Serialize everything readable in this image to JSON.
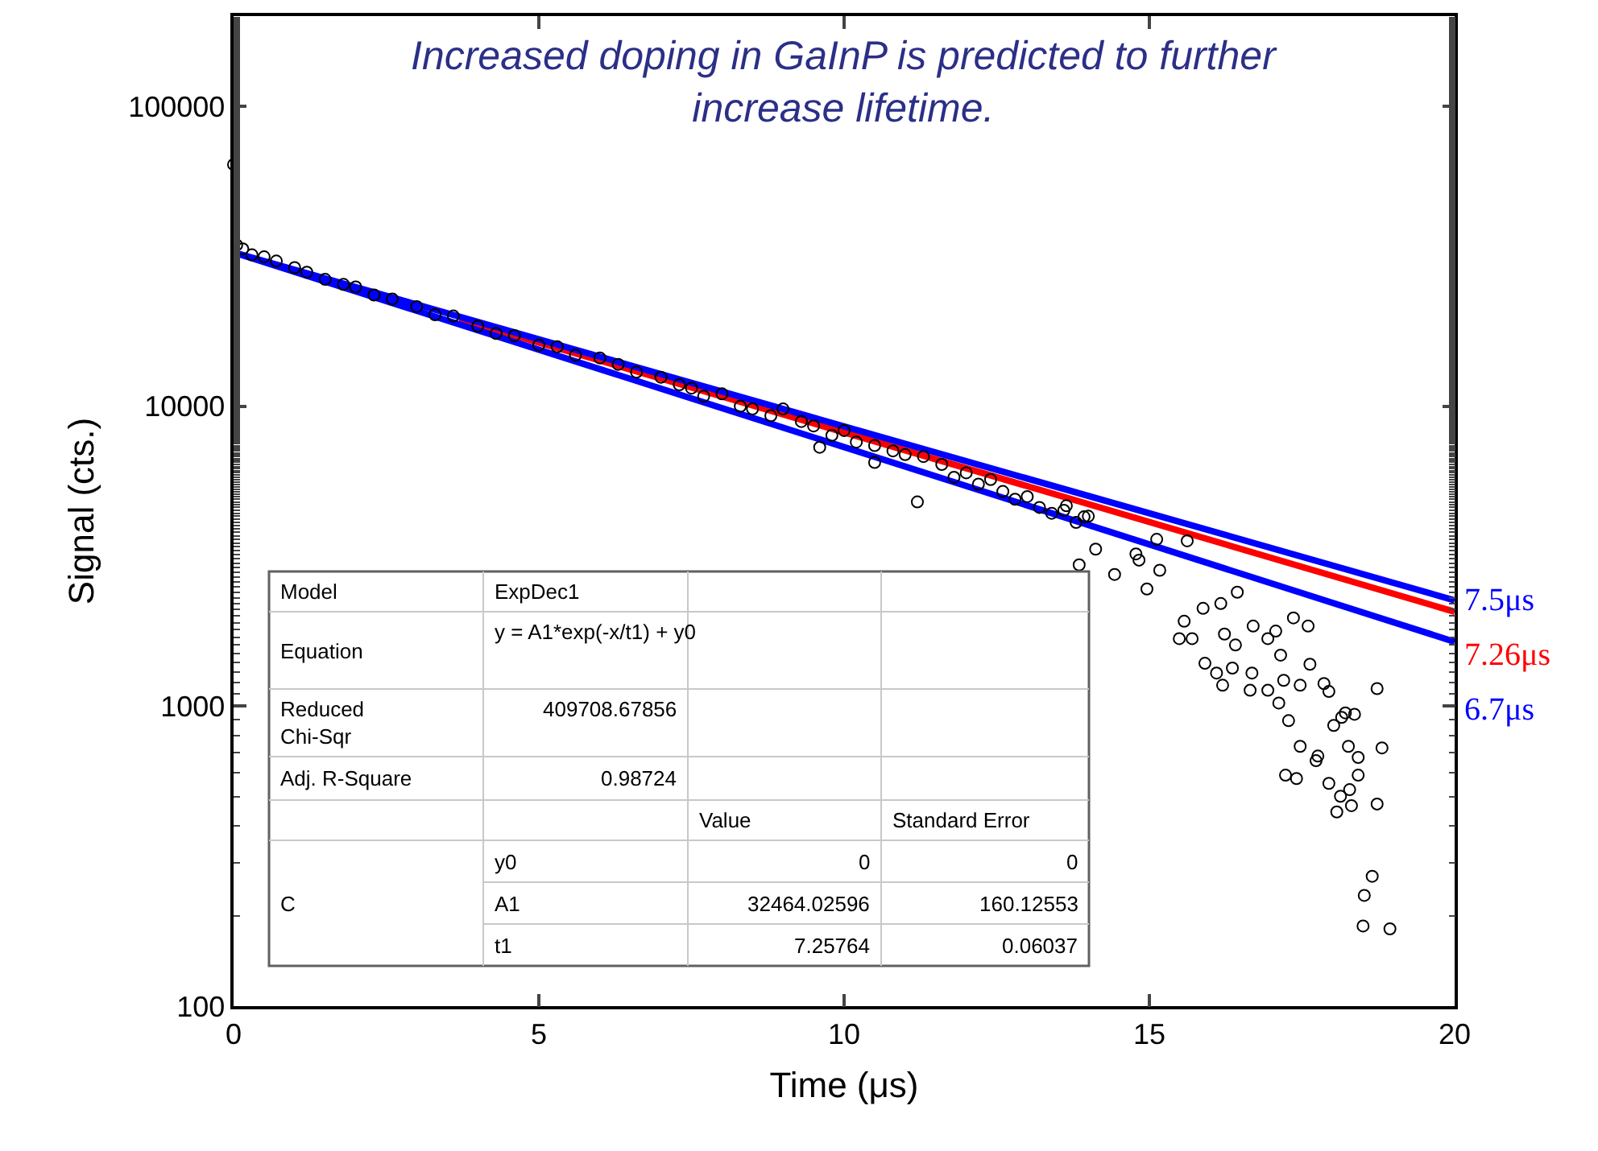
{
  "chart_data": {
    "type": "scatter",
    "title": "Increased doping in GaInP is predicted to further increase lifetime.",
    "xlabel": "Time (μs)",
    "ylabel": "Signal (cts.)",
    "xlim": [
      0,
      20
    ],
    "ylim": [
      100,
      200000
    ],
    "xticks": [
      0,
      5,
      10,
      15,
      20
    ],
    "yticks": [
      100,
      1000,
      10000,
      100000
    ],
    "log": "y",
    "grid": false,
    "legend": false,
    "marker": "circle",
    "series": [
      {
        "color": "#000000",
        "x": [
          0,
          0.05,
          0.15,
          0.3,
          0.5,
          0.7,
          1.0,
          1.2,
          1.5,
          1.8,
          2.0,
          2.3,
          2.6,
          3.0,
          3.3,
          3.6,
          4.0,
          4.3,
          4.6,
          5.0,
          5.3,
          5.6,
          6.0,
          6.3,
          6.6,
          7.0,
          7.3,
          7.5,
          7.7,
          8.0,
          8.3,
          8.5,
          8.8,
          9.0,
          9.3,
          9.5,
          9.6,
          9.8,
          10.0,
          10.2,
          10.5,
          10.5,
          10.8,
          11.0,
          11.2,
          11.3,
          11.6,
          11.8,
          12.0,
          12.2,
          12.4,
          12.6,
          12.8,
          13.0,
          13.2,
          13.4,
          13.6,
          13.64,
          13.8,
          13.85,
          13.93,
          14.0,
          14.12,
          14.43,
          14.78,
          14.83,
          14.96,
          15.12,
          15.17,
          15.49,
          15.57,
          15.62,
          15.7,
          15.88,
          15.91,
          16.1,
          16.17,
          16.2,
          16.23,
          16.36,
          16.41,
          16.44,
          16.65,
          16.68,
          16.7,
          16.94,
          16.94,
          17.07,
          17.12,
          17.15,
          17.2,
          17.23,
          17.28,
          17.36,
          17.41,
          17.47,
          17.47,
          17.6,
          17.63,
          17.73,
          17.76,
          17.86,
          17.94,
          17.94,
          18.02,
          18.07,
          18.13,
          18.15,
          18.21,
          18.26,
          18.28,
          18.31,
          18.36,
          18.42,
          18.42,
          18.5,
          18.52,
          18.65,
          18.73,
          18.73,
          18.81,
          18.94
        ],
        "values": [
          64000,
          34500,
          33500,
          32000,
          31500,
          30500,
          29000,
          28000,
          26500,
          25500,
          25000,
          23500,
          22800,
          21500,
          20200,
          20000,
          18500,
          17500,
          17200,
          16000,
          15800,
          14800,
          14500,
          13800,
          13000,
          12500,
          11800,
          11500,
          10800,
          11000,
          10000,
          9800,
          9300,
          9800,
          8900,
          8600,
          7300,
          8000,
          8300,
          7600,
          7400,
          6500,
          7100,
          6900,
          4800,
          6800,
          6400,
          5800,
          6000,
          5500,
          5700,
          5200,
          4900,
          5000,
          4600,
          4400,
          4500,
          4660,
          4100,
          2960,
          4280,
          4300,
          3340,
          2750,
          3220,
          3070,
          2460,
          3600,
          2840,
          1680,
          1920,
          3560,
          1680,
          2120,
          1390,
          1290,
          2200,
          1175,
          1740,
          1340,
          1600,
          2400,
          1130,
          1290,
          1850,
          1130,
          1680,
          1780,
          1025,
          1480,
          1220,
          589,
          895,
          1970,
          574,
          735,
          1175,
          1850,
          1380,
          658,
          682,
          1190,
          553,
          1120,
          863,
          444,
          501,
          918,
          950,
          735,
          527,
          466,
          940,
          589,
          675,
          185,
          234,
          271,
          472,
          1145,
          726,
          181
        ]
      },
      {
        "type": "line",
        "name": "7.26μs",
        "color": "#ff0000",
        "marker": "none",
        "x": [
          3.7,
          20
        ],
        "values": [
          19500,
          2065
        ]
      },
      {
        "type": "line",
        "name": "7.5μs",
        "color": "#0000ff",
        "marker": "none",
        "x": [
          0,
          20
        ],
        "values": [
          32600,
          2255
        ]
      },
      {
        "type": "line",
        "name": "6.7μs",
        "color": "#0000ff",
        "marker": "none",
        "x": [
          0,
          20
        ],
        "values": [
          32600,
          1640
        ]
      }
    ],
    "annotations": [
      "Model",
      "ExpDec1",
      "Equation",
      "y = A1*exp(-x/t1) + y0",
      "Reduced\nChi-Sqr",
      "409708.67856",
      "Adj. R-Square",
      "0.98724",
      "Value",
      "Standard Error",
      "C",
      "y0",
      "0",
      "0",
      "A1",
      "32464.02596",
      "160.12553",
      "t1",
      "7.25764",
      "0.06037"
    ]
  }
}
